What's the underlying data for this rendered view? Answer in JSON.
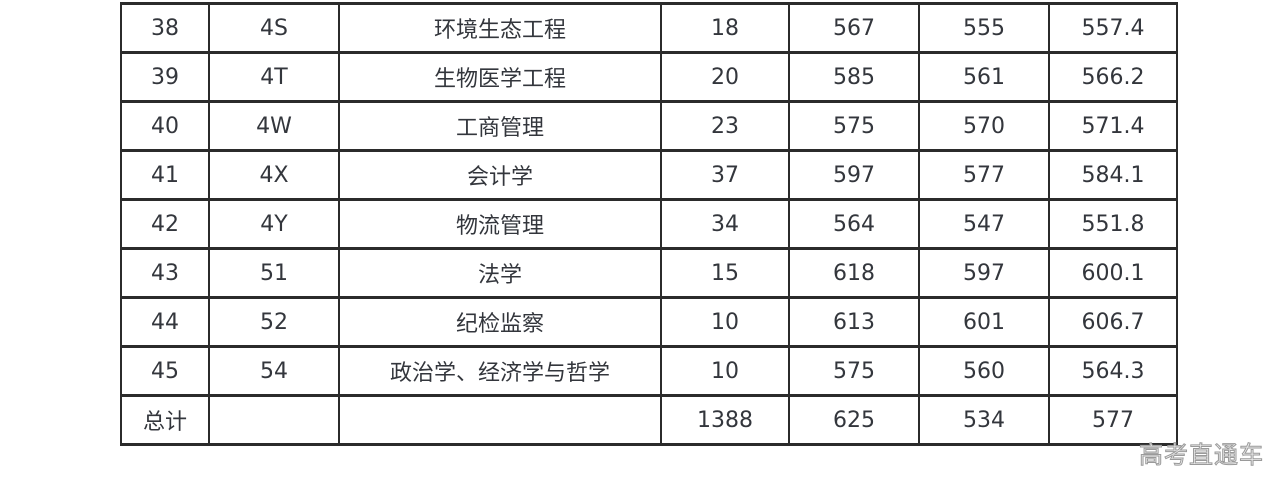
{
  "colors": {
    "background": "#ffffff",
    "table_border": "#2b2b2b",
    "cell_text": "#33363c",
    "watermark_text": "#9a9a9a"
  },
  "table": {
    "rows": [
      [
        "38",
        "4S",
        "环境生态工程",
        "18",
        "567",
        "555",
        "557.4"
      ],
      [
        "39",
        "4T",
        "生物医学工程",
        "20",
        "585",
        "561",
        "566.2"
      ],
      [
        "40",
        "4W",
        "工商管理",
        "23",
        "575",
        "570",
        "571.4"
      ],
      [
        "41",
        "4X",
        "会计学",
        "37",
        "597",
        "577",
        "584.1"
      ],
      [
        "42",
        "4Y",
        "物流管理",
        "34",
        "564",
        "547",
        "551.8"
      ],
      [
        "43",
        "51",
        "法学",
        "15",
        "618",
        "597",
        "600.1"
      ],
      [
        "44",
        "52",
        "纪检监察",
        "10",
        "613",
        "601",
        "606.7"
      ],
      [
        "45",
        "54",
        "政治学、经济学与哲学",
        "10",
        "575",
        "560",
        "564.3"
      ],
      [
        "总计",
        "",
        "",
        "1388",
        "625",
        "534",
        "577"
      ]
    ]
  },
  "watermark": {
    "text": "高考直通车"
  }
}
